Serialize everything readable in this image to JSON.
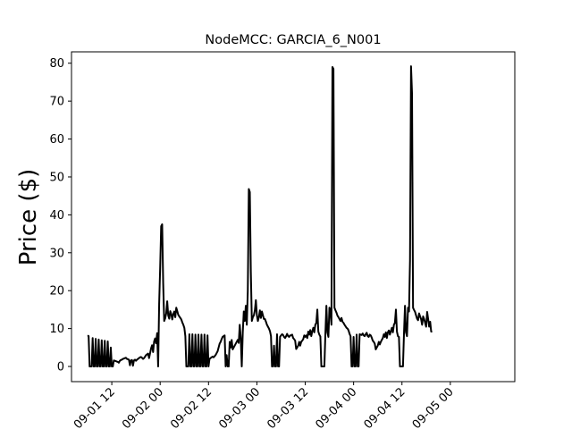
{
  "chart_data": {
    "type": "line",
    "title": "NodeMCC: GARCIA_6_N001",
    "xlabel": "",
    "ylabel": "Price ($)",
    "x_ticks": [
      "09-01 12",
      "09-02 00",
      "09-02 12",
      "09-03 00",
      "09-03 12",
      "09-04 00",
      "09-04 12",
      "09-05 00"
    ],
    "y_ticks": [
      "0",
      "10",
      "20",
      "30",
      "40",
      "50",
      "60",
      "70",
      "80"
    ],
    "xlim": [
      "2021-09-01 02:00",
      "2021-09-05 16:00"
    ],
    "ylim": [
      -4,
      83
    ],
    "grid": false,
    "series": [
      {
        "color": "#000000",
        "x_start": "2021-09-01 06:00",
        "interval_minutes": 15,
        "values": [
          8.2,
          8.0,
          0.0,
          0.0,
          0.0,
          7.5,
          0.0,
          0.0,
          7.3,
          0.0,
          0.0,
          7.1,
          0.0,
          0.0,
          6.9,
          0.0,
          0.0,
          6.8,
          0.0,
          0.0,
          6.6,
          0.0,
          0.0,
          5.0,
          0.0,
          0.0,
          1.6,
          1.5,
          1.4,
          1.3,
          1.2,
          1.0,
          1.5,
          1.7,
          1.8,
          2.0,
          2.1,
          2.2,
          2.3,
          2.0,
          1.9,
          1.8,
          0.3,
          1.6,
          1.7,
          0.2,
          1.6,
          1.8,
          1.5,
          1.8,
          2.0,
          2.2,
          2.4,
          2.5,
          2.3,
          2.0,
          2.2,
          2.6,
          3.0,
          3.2,
          3.4,
          2.2,
          3.5,
          4.8,
          5.6,
          3.8,
          6.6,
          7.4,
          6.1,
          8.8,
          0.0,
          16.5,
          26.0,
          37.0,
          37.5,
          22.0,
          12.0,
          12.7,
          14.0,
          17.2,
          13.5,
          12.6,
          14.6,
          13.8,
          12.4,
          13.8,
          14.5,
          13.0,
          15.5,
          14.6,
          13.6,
          13.2,
          12.8,
          12.4,
          11.6,
          11.0,
          10.2,
          8.0,
          0.0,
          0.0,
          0.0,
          8.5,
          0.0,
          0.0,
          8.5,
          0.0,
          0.0,
          8.4,
          0.0,
          0.0,
          8.4,
          0.0,
          0.0,
          8.4,
          0.0,
          0.0,
          8.4,
          0.0,
          0.0,
          8.2,
          0.0,
          2.0,
          2.2,
          2.4,
          2.6,
          2.4,
          2.7,
          3.0,
          3.5,
          4.0,
          5.0,
          6.0,
          6.5,
          7.2,
          7.8,
          8.0,
          8.2,
          0.0,
          3.0,
          0.0,
          0.0,
          6.5,
          5.0,
          7.0,
          4.5,
          5.0,
          5.5,
          6.0,
          6.5,
          7.0,
          6.2,
          11.0,
          7.5,
          0.0,
          9.0,
          14.5,
          12.0,
          16.0,
          11.0,
          20.0,
          46.8,
          46.0,
          25.0,
          12.0,
          13.0,
          13.5,
          14.8,
          17.5,
          13.5,
          12.0,
          13.0,
          14.8,
          12.8,
          14.5,
          13.5,
          12.5,
          12.5,
          11.8,
          11.0,
          10.5,
          10.0,
          9.3,
          8.0,
          0.0,
          0.0,
          5.5,
          0.0,
          0.0,
          8.5,
          0.0,
          0.0,
          7.8,
          8.2,
          8.5,
          8.3,
          7.8,
          7.5,
          8.0,
          8.6,
          8.0,
          7.8,
          8.2,
          8.2,
          8.4,
          7.5,
          7.2,
          6.8,
          4.6,
          5.0,
          5.5,
          6.5,
          5.5,
          6.5,
          6.8,
          7.2,
          8.2,
          7.8,
          8.2,
          7.5,
          9.2,
          8.4,
          9.6,
          8.0,
          9.3,
          10.2,
          9.0,
          11.0,
          11.5,
          15.0,
          9.2,
          8.4,
          7.9,
          0.0,
          0.0,
          0.0,
          0.0,
          8.6,
          16.0,
          9.0,
          7.8,
          15.5,
          14.8,
          11.0,
          79.0,
          78.5,
          15.5,
          14.8,
          14.2,
          13.4,
          13.0,
          12.5,
          12.0,
          12.8,
          11.8,
          11.5,
          11.0,
          10.6,
          10.2,
          10.0,
          9.5,
          8.6,
          8.0,
          0.0,
          0.0,
          7.8,
          0.0,
          0.0,
          8.4,
          0.0,
          0.0,
          8.5,
          8.4,
          8.3,
          8.7,
          8.2,
          8.0,
          8.5,
          8.9,
          8.0,
          7.8,
          8.4,
          8.2,
          7.6,
          6.8,
          6.5,
          6.0,
          4.5,
          5.0,
          5.5,
          6.5,
          5.8,
          6.5,
          7.0,
          7.5,
          8.5,
          7.8,
          9.0,
          7.5,
          9.0,
          9.5,
          8.4,
          9.3,
          10.2,
          9.0,
          11.0,
          11.5,
          15.0,
          9.2,
          8.0,
          7.8,
          0.0,
          0.0,
          0.0,
          0.0,
          8.6,
          16.0,
          9.0,
          8.0,
          15.5,
          14.5,
          28.0,
          79.2,
          72.0,
          15.5,
          14.9,
          14.4,
          13.5,
          12.6,
          12.2,
          14.0,
          13.2,
          12.5,
          11.0,
          13.2,
          12.5,
          11.5,
          10.5,
          14.4,
          12.5,
          10.5,
          11.8,
          9.2,
          9.3
        ]
      }
    ]
  }
}
